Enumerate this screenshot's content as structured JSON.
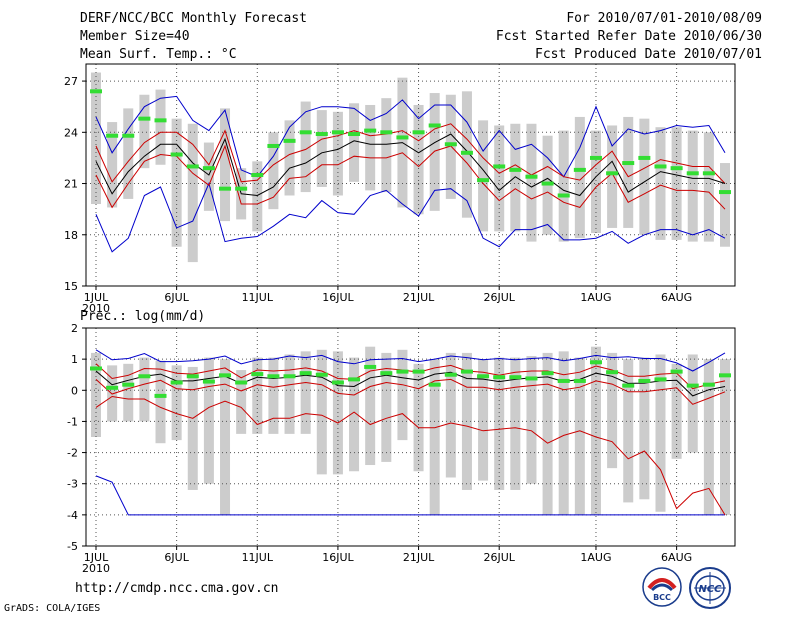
{
  "header": {
    "title": "DERF/NCC/BCC Monthly Forecast",
    "member_size": "Member Size=40",
    "variable_top": "Mean Surf. Temp.: °C",
    "period": "For 2010/07/01-2010/08/09",
    "started": "Fcst Started Refer Date 2010/06/30",
    "produced": "Fcst Produced Date 2010/07/01"
  },
  "footer": {
    "url": "http://cmdp.ncc.cma.gov.cn",
    "credit": "GrADS: COLA/IGES",
    "logo1": "BCC",
    "logo2": "NCC"
  },
  "colors": {
    "box": "#cccccc",
    "obs": "#33dd33",
    "mean": "#000000",
    "spread": "#cc0000",
    "range": "#0000cc",
    "grid": "#555555"
  },
  "chart_data": [
    {
      "type": "box_ensemble",
      "title": "Mean Surf. Temp.: °C",
      "xlabel_year": "2010",
      "xticks": [
        "1JUL",
        "6JUL",
        "11JUL",
        "16JUL",
        "21JUL",
        "26JUL",
        "1AUG",
        "6AUG"
      ],
      "xtick_days": [
        1,
        6,
        11,
        16,
        21,
        26,
        32,
        37
      ],
      "days": 40,
      "ylim": [
        15,
        28
      ],
      "yticks": [
        15,
        18,
        21,
        24,
        27
      ],
      "series": {
        "mean": [
          22.3,
          20.4,
          21.7,
          22.6,
          23.3,
          23.3,
          22.2,
          21.5,
          23.6,
          20.4,
          20.3,
          20.8,
          21.9,
          22.2,
          22.8,
          23.0,
          23.5,
          23.3,
          23.3,
          23.4,
          22.8,
          23.4,
          23.9,
          22.9,
          21.8,
          20.6,
          21.4,
          20.8,
          21.3,
          20.6,
          20.3,
          21.4,
          22.3,
          20.5,
          21.1,
          21.7,
          21.5,
          21.3,
          21.3,
          21.0
        ],
        "upper": [
          23.2,
          21.1,
          22.3,
          23.4,
          24.0,
          24.0,
          23.3,
          22.1,
          24.1,
          21.1,
          21.2,
          22.1,
          22.7,
          23.0,
          23.6,
          23.8,
          24.1,
          23.8,
          23.9,
          24.1,
          23.5,
          24.2,
          24.5,
          23.6,
          22.5,
          21.6,
          22.1,
          21.5,
          22.0,
          21.4,
          21.2,
          22.1,
          22.9,
          21.4,
          21.9,
          22.4,
          22.2,
          22.0,
          22.0,
          21.0
        ],
        "lower": [
          21.5,
          19.6,
          21.0,
          22.3,
          22.7,
          22.6,
          21.6,
          20.9,
          23.2,
          19.8,
          19.8,
          20.2,
          21.3,
          21.4,
          22.1,
          22.1,
          22.6,
          22.5,
          22.5,
          22.8,
          22.0,
          22.9,
          23.2,
          22.2,
          21.0,
          20.0,
          20.7,
          20.1,
          20.5,
          19.9,
          19.6,
          20.8,
          21.6,
          19.9,
          20.4,
          20.9,
          20.6,
          20.6,
          20.5,
          19.5
        ],
        "max": [
          24.9,
          22.8,
          24.2,
          25.5,
          26.0,
          26.1,
          24.7,
          24.1,
          25.3,
          21.8,
          21.4,
          22.6,
          24.3,
          25.2,
          25.5,
          25.5,
          25.4,
          24.7,
          25.1,
          25.9,
          24.8,
          25.6,
          25.6,
          24.6,
          22.9,
          24.1,
          23.0,
          23.3,
          22.5,
          21.4,
          23.1,
          25.5,
          23.2,
          24.2,
          23.9,
          24.1,
          24.4,
          24.3,
          24.4,
          22.8
        ],
        "min": [
          19.2,
          17.0,
          17.8,
          20.3,
          20.8,
          18.4,
          18.8,
          21.0,
          17.6,
          17.8,
          17.9,
          18.5,
          19.2,
          19.0,
          20.0,
          19.3,
          19.2,
          20.3,
          20.6,
          19.8,
          19.1,
          20.6,
          20.7,
          20.0,
          17.8,
          17.3,
          18.3,
          18.3,
          18.6,
          17.7,
          17.7,
          17.8,
          18.2,
          17.5,
          18.0,
          18.3,
          18.3,
          18.0,
          18.3,
          17.8
        ],
        "obs": [
          26.4,
          23.8,
          23.8,
          24.8,
          24.7,
          22.7,
          22.0,
          21.9,
          20.7,
          20.7,
          21.5,
          23.2,
          23.5,
          24.0,
          23.9,
          24.0,
          23.9,
          24.1,
          24.0,
          23.7,
          24.0,
          24.4,
          23.3,
          22.8,
          21.2,
          22.0,
          21.8,
          21.4,
          21.0,
          20.3,
          21.8,
          22.5,
          21.6,
          22.2,
          22.5,
          22.0,
          21.9,
          21.6,
          21.6,
          20.5
        ],
        "box_top": [
          27.5,
          24.6,
          25.4,
          26.2,
          26.5,
          24.8,
          24.5,
          23.4,
          25.4,
          21.9,
          22.3,
          24.0,
          24.7,
          25.8,
          25.3,
          25.2,
          25.7,
          25.6,
          26.0,
          27.2,
          25.6,
          26.3,
          26.2,
          26.4,
          24.7,
          24.4,
          24.5,
          24.5,
          23.8,
          24.1,
          24.9,
          24.1,
          24.4,
          24.9,
          24.8,
          24.3,
          24.3,
          24.1,
          24.0,
          22.2
        ],
        "box_bottom": [
          19.8,
          19.6,
          20.1,
          21.9,
          22.1,
          17.3,
          16.4,
          19.4,
          18.8,
          18.9,
          18.2,
          19.5,
          20.3,
          20.5,
          20.8,
          20.3,
          21.1,
          20.6,
          20.5,
          19.6,
          19.2,
          19.4,
          20.1,
          19.0,
          18.2,
          18.2,
          18.2,
          17.6,
          18.0,
          17.6,
          17.8,
          18.1,
          18.4,
          18.4,
          18.0,
          17.7,
          17.7,
          17.6,
          17.6,
          17.3
        ]
      }
    },
    {
      "type": "box_ensemble",
      "title": "Prec.: log(mm/d)",
      "xlabel_year": "2010",
      "xticks": [
        "1JUL",
        "6JUL",
        "11JUL",
        "16JUL",
        "21JUL",
        "26JUL",
        "1AUG",
        "6AUG"
      ],
      "xtick_days": [
        1,
        6,
        11,
        16,
        21,
        26,
        32,
        37
      ],
      "days": 40,
      "ylim": [
        -5,
        2
      ],
      "yticks": [
        -5,
        -4,
        -3,
        -2,
        -1,
        0,
        1,
        2
      ],
      "series": {
        "mean": [
          0.62,
          0.18,
          0.32,
          0.45,
          0.52,
          0.3,
          0.3,
          0.38,
          0.45,
          0.22,
          0.42,
          0.38,
          0.42,
          0.48,
          0.42,
          0.15,
          0.12,
          0.4,
          0.48,
          0.4,
          0.33,
          0.52,
          0.58,
          0.38,
          0.36,
          0.28,
          0.35,
          0.4,
          0.43,
          0.28,
          0.35,
          0.55,
          0.45,
          0.22,
          0.23,
          0.3,
          0.32,
          -0.18,
          0.02,
          0.12
        ],
        "upper": [
          0.85,
          0.38,
          0.48,
          0.7,
          0.68,
          0.55,
          0.52,
          0.62,
          0.72,
          0.4,
          0.65,
          0.62,
          0.65,
          0.72,
          0.62,
          0.38,
          0.35,
          0.62,
          0.7,
          0.65,
          0.58,
          0.72,
          0.8,
          0.62,
          0.58,
          0.48,
          0.58,
          0.62,
          0.62,
          0.5,
          0.58,
          0.78,
          0.65,
          0.45,
          0.45,
          0.52,
          0.55,
          0.05,
          0.2,
          0.3
        ],
        "lower": [
          0.35,
          -0.12,
          0.05,
          0.2,
          0.32,
          0.05,
          0.02,
          0.12,
          0.2,
          -0.02,
          0.18,
          0.1,
          0.18,
          0.25,
          0.18,
          -0.1,
          -0.15,
          0.12,
          0.25,
          0.18,
          0.05,
          0.3,
          0.35,
          0.1,
          0.1,
          0.02,
          0.1,
          0.15,
          0.2,
          0.02,
          0.1,
          0.3,
          0.2,
          -0.05,
          -0.05,
          0.02,
          0.08,
          -0.45,
          -0.25,
          -0.05
        ],
        "max": [
          1.3,
          0.98,
          1.02,
          1.18,
          0.92,
          0.92,
          0.95,
          1.0,
          1.1,
          0.85,
          0.98,
          1.0,
          1.1,
          1.05,
          1.12,
          0.92,
          0.85,
          0.98,
          1.0,
          1.02,
          0.92,
          1.0,
          1.1,
          1.05,
          0.98,
          1.02,
          0.98,
          1.02,
          1.05,
          0.95,
          1.02,
          1.12,
          1.05,
          1.08,
          1.02,
          1.02,
          0.88,
          0.62,
          0.9,
          1.2
        ],
        "min": [
          -2.75,
          -2.95,
          -4.0,
          -4.0,
          -4.0,
          -4.0,
          -4.0,
          -4.0,
          -4.0,
          -4.0,
          -4.0,
          -4.0,
          -4.0,
          -4.0,
          -4.0,
          -4.0,
          -4.0,
          -4.0,
          -4.0,
          -4.0,
          -4.0,
          -4.0,
          -4.0,
          -4.0,
          -4.0,
          -4.0,
          -4.0,
          -4.0,
          -4.0,
          -4.0,
          -4.0,
          -4.0,
          -4.0,
          -4.0,
          -4.0,
          -4.0,
          -4.0,
          -4.0,
          -4.0,
          -4.0
        ],
        "spread_low": [
          -0.55,
          -0.2,
          -0.28,
          -0.28,
          -0.55,
          -0.75,
          -0.9,
          -0.55,
          -0.35,
          -0.55,
          -1.1,
          -0.9,
          -0.9,
          -0.75,
          -0.8,
          -1.05,
          -0.7,
          -1.1,
          -0.9,
          -0.75,
          -1.2,
          -1.2,
          -1.05,
          -1.15,
          -1.3,
          -1.25,
          -1.2,
          -1.3,
          -1.7,
          -1.45,
          -1.3,
          -1.5,
          -1.65,
          -2.2,
          -1.95,
          -2.55,
          -3.8,
          -3.3,
          -3.15,
          -4.0
        ],
        "obs": [
          0.7,
          0.08,
          0.18,
          0.45,
          -0.18,
          0.25,
          0.45,
          0.28,
          0.48,
          0.25,
          0.52,
          0.45,
          0.45,
          0.55,
          0.5,
          0.25,
          0.35,
          0.75,
          0.55,
          0.6,
          0.6,
          0.18,
          0.5,
          0.6,
          0.45,
          0.42,
          0.42,
          0.38,
          0.55,
          0.3,
          0.3,
          0.9,
          0.58,
          0.15,
          0.3,
          0.35,
          0.6,
          0.15,
          0.18,
          0.48
        ],
        "box_top": [
          1.2,
          0.8,
          0.85,
          1.05,
          0.95,
          0.8,
          0.75,
          1.05,
          1.0,
          0.65,
          1.05,
          1.05,
          1.15,
          1.25,
          1.3,
          1.25,
          1.05,
          1.4,
          1.2,
          1.3,
          0.85,
          1.0,
          1.2,
          1.2,
          1.0,
          1.05,
          1.05,
          1.1,
          1.2,
          1.25,
          1.05,
          1.4,
          1.2,
          1.0,
          1.05,
          1.15,
          0.85,
          1.15,
          1.0,
          1.0
        ],
        "box_bottom": [
          -1.5,
          -1.0,
          -1.0,
          -1.0,
          -1.7,
          -1.6,
          -3.2,
          -3.0,
          -4.0,
          -1.4,
          -1.4,
          -1.4,
          -1.4,
          -1.4,
          -2.7,
          -2.7,
          -2.6,
          -2.4,
          -2.3,
          -1.6,
          -2.6,
          -4.0,
          -2.8,
          -3.2,
          -2.9,
          -3.2,
          -3.2,
          -3.0,
          -4.0,
          -4.0,
          -4.0,
          -4.0,
          -2.5,
          -3.6,
          -3.5,
          -3.9,
          -2.2,
          -2.0,
          -4.0,
          -4.0
        ]
      }
    }
  ]
}
